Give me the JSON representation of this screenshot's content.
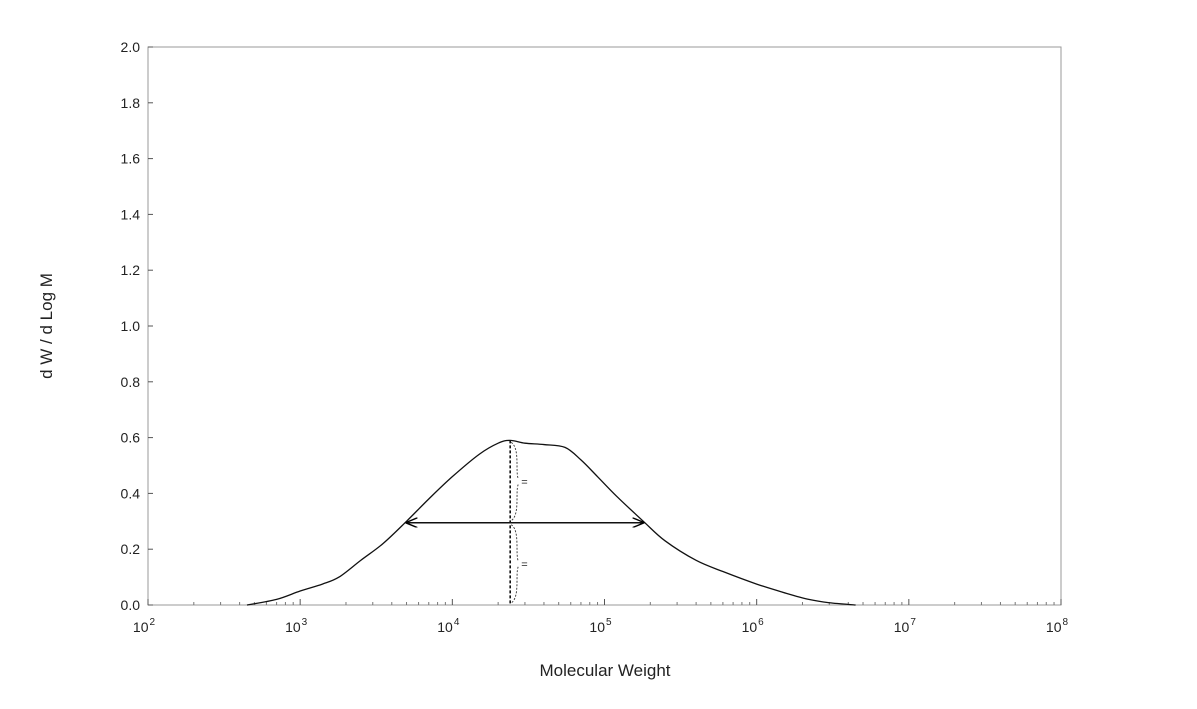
{
  "chart_data": {
    "type": "line",
    "xlabel": "Molecular Weight",
    "ylabel": "d W / d Log M",
    "x_scale": "log",
    "xlim": [
      100,
      100000000
    ],
    "ylim": [
      0,
      2.0
    ],
    "grid": false,
    "x_tick_values": [
      100,
      1000,
      10000,
      100000,
      1000000,
      10000000,
      100000000
    ],
    "x_tick_labels": [
      {
        "base": "10",
        "exp": "2"
      },
      {
        "base": "10",
        "exp": "3"
      },
      {
        "base": "10",
        "exp": "4"
      },
      {
        "base": "10",
        "exp": "5"
      },
      {
        "base": "10",
        "exp": "6"
      },
      {
        "base": "10",
        "exp": "7"
      },
      {
        "base": "10",
        "exp": "8"
      }
    ],
    "y_tick_labels": [
      "0.0",
      "0.2",
      "0.4",
      "0.6",
      "0.8",
      "1.0",
      "1.2",
      "1.4",
      "1.6",
      "1.8",
      "2.0"
    ],
    "series": [
      {
        "style": "solid",
        "x": [
          447,
          700,
          1000,
          1400,
          1800,
          2500,
          3500,
          5000,
          7000,
          10000,
          15000,
          20000,
          24000,
          30000,
          40000,
          55000,
          70000,
          90000,
          120000,
          180000,
          250000,
          400000,
          600000,
          1000000,
          1500000,
          2200000,
          3000000,
          4470000
        ],
        "y": [
          0.0,
          0.02,
          0.05,
          0.075,
          0.1,
          0.16,
          0.22,
          0.3,
          0.38,
          0.46,
          0.54,
          0.58,
          0.59,
          0.58,
          0.575,
          0.565,
          0.52,
          0.46,
          0.39,
          0.3,
          0.23,
          0.16,
          0.12,
          0.075,
          0.045,
          0.02,
          0.008,
          0.0
        ]
      }
    ],
    "annotations": {
      "peak_line": {
        "x": 24000,
        "y_top": 0.59,
        "style": "dashed"
      },
      "half_width_arrow": {
        "x_start": 5000,
        "x_end": 180000,
        "y": 0.295
      },
      "equal_marks": [
        "=",
        "="
      ]
    }
  }
}
